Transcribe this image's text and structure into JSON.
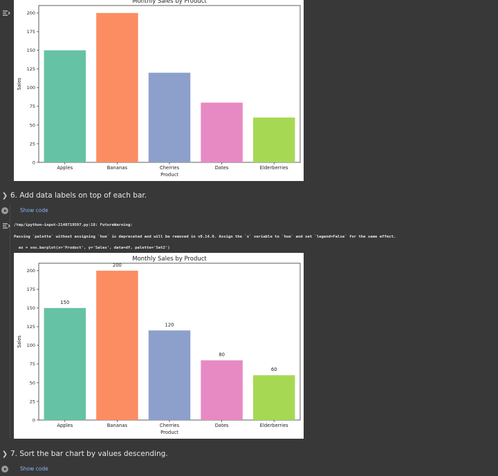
{
  "chart_data": [
    {
      "type": "bar",
      "title": "Monthly Sales by Product",
      "xlabel": "Product",
      "ylabel": "Sales",
      "categories": [
        "Apples",
        "Bananas",
        "Cherries",
        "Dates",
        "Elderberries"
      ],
      "values": [
        150,
        200,
        120,
        80,
        60
      ],
      "ylim": [
        0,
        210
      ],
      "yticks": [
        0,
        25,
        50,
        75,
        100,
        125,
        150,
        175,
        200
      ],
      "colors": [
        "#66c2a5",
        "#fc8d62",
        "#8da0cb",
        "#e78ac3",
        "#a6d854"
      ],
      "data_labels": false
    },
    {
      "type": "bar",
      "title": "Monthly Sales by Product",
      "xlabel": "Product",
      "ylabel": "Sales",
      "categories": [
        "Apples",
        "Bananas",
        "Cherries",
        "Dates",
        "Elderberries"
      ],
      "values": [
        150,
        200,
        120,
        80,
        60
      ],
      "ylim": [
        0,
        210
      ],
      "yticks": [
        0,
        25,
        50,
        75,
        100,
        125,
        150,
        175,
        200
      ],
      "colors": [
        "#66c2a5",
        "#fc8d62",
        "#8da0cb",
        "#e78ac3",
        "#a6d854"
      ],
      "data_labels": true
    }
  ],
  "notebook": {
    "section6_title": "6. Add data labels on top of each bar.",
    "section7_title": "7. Sort the bar chart by values descending.",
    "show_code": "Show code",
    "warning_line1": "/tmp/ipython-input-2140719597.py:18: FutureWarning:",
    "warning_line2": "Passing `palette` without assigning `hue` is deprecated and will be removed in v0.14.0. Assign the `x` variable to `hue` and set `legend=False` for the same effect.",
    "warning_line3": "  ax = sns.barplot(x='Product', y='Sales', data=df, palette='Set2')"
  },
  "colors": {
    "background": "#383838",
    "link": "#8ab4f8"
  }
}
